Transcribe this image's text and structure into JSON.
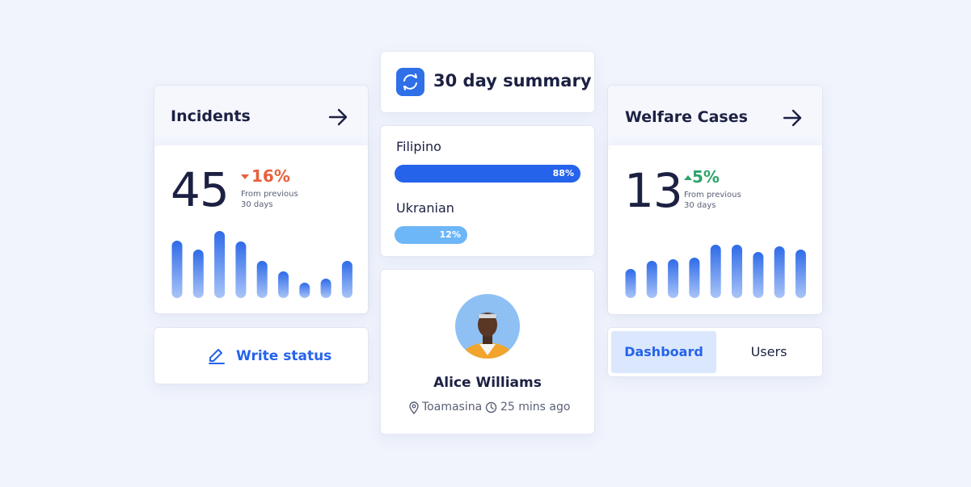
{
  "incidents": {
    "title": "Incidents",
    "count": 45,
    "change": "16%",
    "direction": "down",
    "change_color": "#e8603c",
    "note": [
      "From previous",
      "30 days"
    ],
    "trend": [
      71,
      60,
      83,
      70,
      46,
      33,
      19,
      24,
      46
    ]
  },
  "write_status": "Write status",
  "summary": {
    "title": "30 day summary",
    "languages": [
      {
        "name": "Filipino",
        "share": 88,
        "label": "88%",
        "color": "#2563eb"
      },
      {
        "name": "Ukranian",
        "share": 12,
        "label": "12%",
        "color": "#6db6f7"
      }
    ]
  },
  "profile": {
    "name": "Alice Williams",
    "location": "Toamasina",
    "time_ago": "25 mins ago"
  },
  "welfare": {
    "title": "Welfare Cases",
    "count": 13,
    "change": "5%",
    "direction": "up",
    "change_color": "#2ea36a",
    "note": [
      "From previous",
      "30 days"
    ],
    "trend": [
      36,
      46,
      48,
      50,
      66,
      66,
      57,
      64,
      60
    ]
  },
  "tabs": {
    "items": [
      "Dashboard",
      "Users"
    ],
    "active": 0
  }
}
